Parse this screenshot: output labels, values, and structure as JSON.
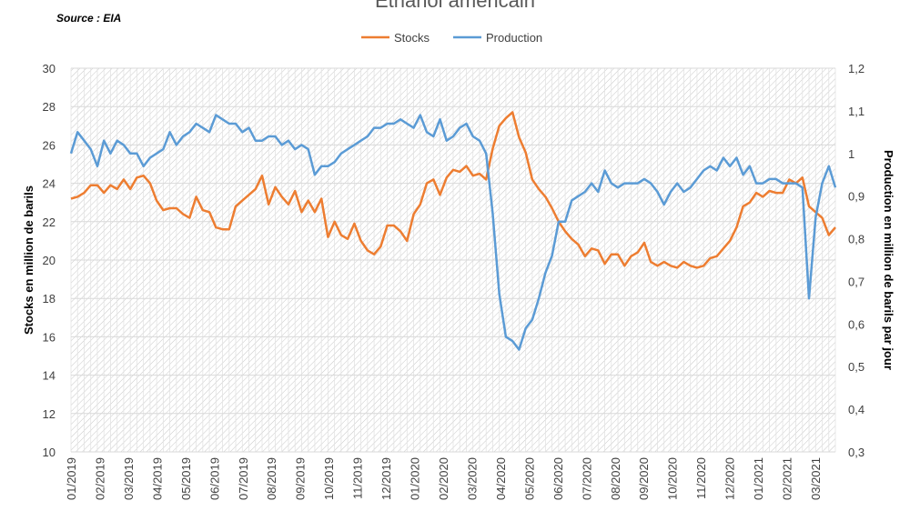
{
  "chart_data": {
    "type": "line",
    "title": "Ethanol américain",
    "source": "Source : EIA",
    "ylabel_left": "Stocks en million de barils",
    "ylabel_right": "Production en million de barils par jour",
    "ylim_left": [
      10,
      30
    ],
    "ylim_right": [
      0.3,
      1.2
    ],
    "yticks_left": [
      "10",
      "12",
      "14",
      "16",
      "18",
      "20",
      "22",
      "24",
      "26",
      "28",
      "30"
    ],
    "yticks_right": [
      "0,3",
      "0,4",
      "0,5",
      "0,6",
      "0,7",
      "0,8",
      "0,9",
      "1",
      "1,1",
      "1,2"
    ],
    "x_tick_labels": [
      "01/2019",
      "02/2019",
      "03/2019",
      "04/2019",
      "05/2019",
      "06/2019",
      "07/2019",
      "08/2019",
      "09/2019",
      "10/2019",
      "11/2019",
      "12/2019",
      "01/2020",
      "02/2020",
      "03/2020",
      "04/2020",
      "05/2020",
      "06/2020",
      "07/2020",
      "08/2020",
      "09/2020",
      "10/2020",
      "11/2020",
      "12/2020",
      "01/2021",
      "02/2021",
      "03/2021"
    ],
    "x_unit": "weeks since 01/2019 (weekly observations)",
    "grid": true,
    "legend_position": "top",
    "series": [
      {
        "name": "Stocks",
        "axis": "left",
        "color": "#ED7D31",
        "values": [
          23.2,
          23.3,
          23.5,
          23.9,
          23.9,
          23.5,
          23.9,
          23.7,
          24.2,
          23.7,
          24.3,
          24.4,
          24.0,
          23.1,
          22.6,
          22.7,
          22.7,
          22.4,
          22.2,
          23.3,
          22.6,
          22.5,
          21.7,
          21.6,
          21.6,
          22.8,
          23.1,
          23.4,
          23.7,
          24.4,
          22.9,
          23.8,
          23.3,
          22.9,
          23.6,
          22.5,
          23.1,
          22.5,
          23.2,
          21.2,
          22.0,
          21.3,
          21.1,
          21.9,
          21.0,
          20.5,
          20.3,
          20.7,
          21.8,
          21.8,
          21.5,
          21.0,
          22.4,
          22.9,
          24.0,
          24.2,
          23.4,
          24.3,
          24.7,
          24.6,
          24.9,
          24.4,
          24.5,
          24.2,
          25.8,
          27.0,
          27.4,
          27.7,
          26.4,
          25.6,
          24.2,
          23.7,
          23.3,
          22.7,
          22.0,
          21.5,
          21.1,
          20.8,
          20.2,
          20.6,
          20.5,
          19.8,
          20.3,
          20.3,
          19.7,
          20.2,
          20.4,
          20.9,
          19.9,
          19.7,
          19.9,
          19.7,
          19.6,
          19.9,
          19.7,
          19.6,
          19.7,
          20.1,
          20.2,
          20.6,
          21.0,
          21.7,
          22.8,
          23.0,
          23.5,
          23.3,
          23.6,
          23.5,
          23.5,
          24.2,
          24.0,
          24.3,
          22.8,
          22.5,
          22.2,
          21.3,
          21.7
        ]
      },
      {
        "name": "Production",
        "axis": "right",
        "color": "#5B9BD5",
        "values": [
          1.0,
          1.05,
          1.03,
          1.01,
          0.97,
          1.03,
          1.0,
          1.03,
          1.02,
          1.0,
          1.0,
          0.97,
          0.99,
          1.0,
          1.01,
          1.05,
          1.02,
          1.04,
          1.05,
          1.07,
          1.06,
          1.05,
          1.09,
          1.08,
          1.07,
          1.07,
          1.05,
          1.06,
          1.03,
          1.03,
          1.04,
          1.04,
          1.02,
          1.03,
          1.01,
          1.02,
          1.01,
          0.95,
          0.97,
          0.97,
          0.98,
          1.0,
          1.01,
          1.02,
          1.03,
          1.04,
          1.06,
          1.06,
          1.07,
          1.07,
          1.08,
          1.07,
          1.06,
          1.09,
          1.05,
          1.04,
          1.08,
          1.03,
          1.04,
          1.06,
          1.07,
          1.04,
          1.03,
          1.0,
          0.86,
          0.67,
          0.57,
          0.56,
          0.54,
          0.59,
          0.61,
          0.66,
          0.72,
          0.76,
          0.84,
          0.84,
          0.89,
          0.9,
          0.91,
          0.93,
          0.91,
          0.96,
          0.93,
          0.92,
          0.93,
          0.93,
          0.93,
          0.94,
          0.93,
          0.91,
          0.88,
          0.91,
          0.93,
          0.91,
          0.92,
          0.94,
          0.96,
          0.97,
          0.96,
          0.99,
          0.97,
          0.99,
          0.95,
          0.97,
          0.93,
          0.93,
          0.94,
          0.94,
          0.93,
          0.93,
          0.93,
          0.92,
          0.66,
          0.85,
          0.93,
          0.97,
          0.92
        ]
      }
    ]
  }
}
